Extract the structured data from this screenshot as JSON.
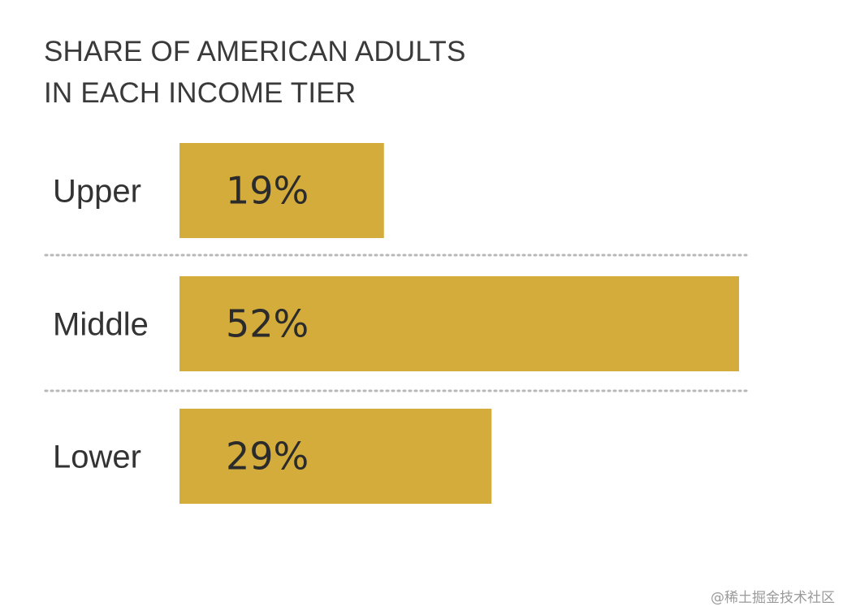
{
  "chart_data": {
    "type": "bar",
    "orientation": "horizontal",
    "title_lines": [
      "SHARE OF AMERICAN ADULTS",
      "IN EACH INCOME TIER"
    ],
    "categories": [
      "Upper",
      "Middle",
      "Lower"
    ],
    "values": [
      19,
      52,
      29
    ],
    "value_labels": [
      "19%",
      "52%",
      "29%"
    ],
    "unit": "%",
    "xlim": [
      0,
      52
    ],
    "grid": false,
    "legend": "none",
    "separators": "dotted",
    "bar_color": "#d4ac3b",
    "separator_color": "#b8b8b8"
  },
  "watermark": "@稀土掘金技术社区"
}
